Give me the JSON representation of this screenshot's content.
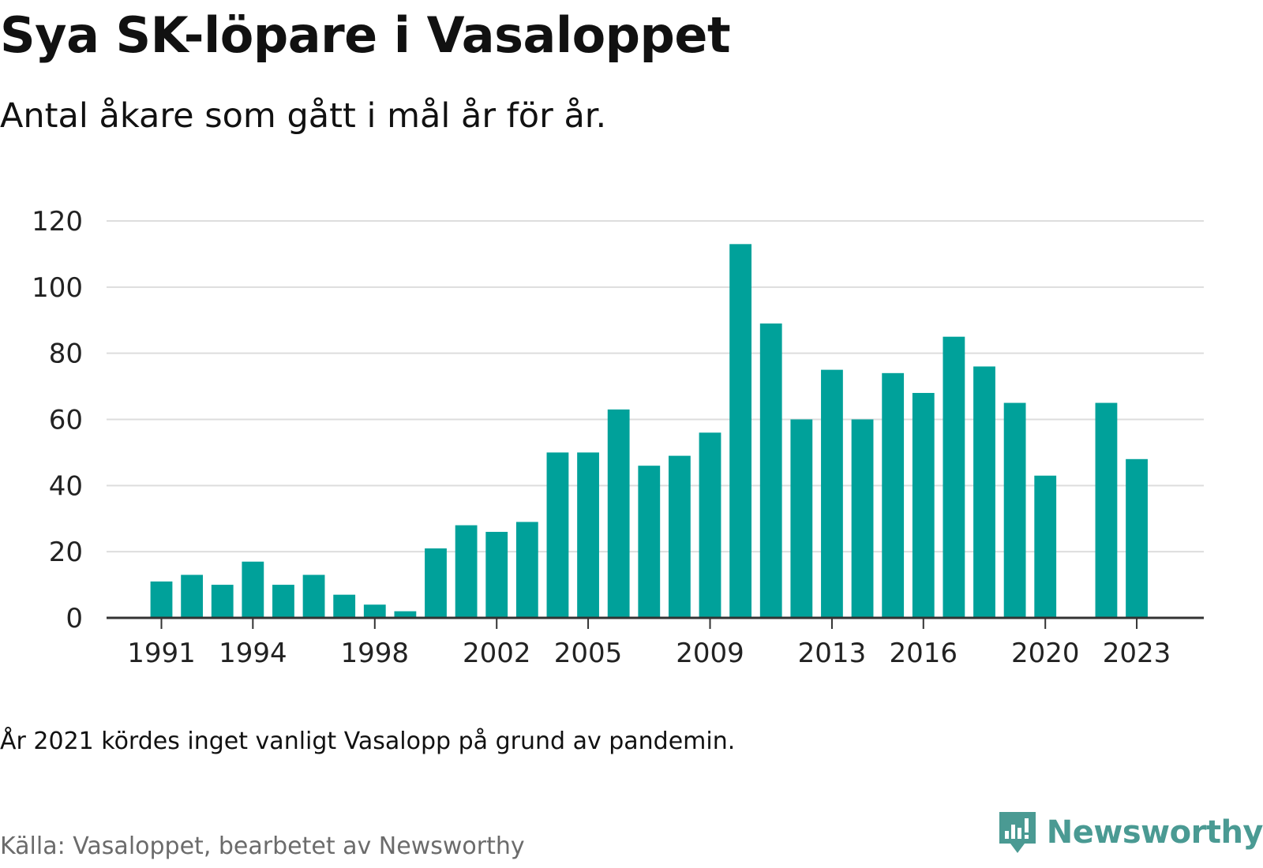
{
  "title": "Sya SK-löpare i Vasaloppet",
  "subtitle": "Antal åkare som gått i mål år för år.",
  "note": "År 2021 kördes inget vanligt Vasalopp på grund av pandemin.",
  "source": "Källa: Vasaloppet, bearbetet av Newsworthy",
  "brand": {
    "name": "Newsworthy",
    "icon": "newsworthy-logo-icon",
    "color": "#4a9a93"
  },
  "colors": {
    "bar": "#00a19a",
    "grid": "#dddddd",
    "axis": "#333333"
  },
  "chart_data": {
    "type": "bar",
    "title": "Sya SK-löpare i Vasaloppet",
    "subtitle": "Antal åkare som gått i mål år för år.",
    "xlabel": "",
    "ylabel": "",
    "ylim": [
      0,
      120
    ],
    "yticks": [
      0,
      20,
      40,
      60,
      80,
      100,
      120
    ],
    "xlim": [
      1989.2,
      2025.2
    ],
    "xticks": [
      1991,
      1994,
      1998,
      2002,
      2005,
      2009,
      2013,
      2016,
      2020,
      2023
    ],
    "grid": true,
    "legend": "none",
    "x": [
      1991,
      1992,
      1993,
      1994,
      1995,
      1996,
      1997,
      1998,
      1999,
      2000,
      2001,
      2002,
      2003,
      2004,
      2005,
      2006,
      2007,
      2008,
      2009,
      2010,
      2011,
      2012,
      2013,
      2014,
      2015,
      2016,
      2017,
      2018,
      2019,
      2020,
      2022,
      2023
    ],
    "values": [
      11,
      13,
      10,
      17,
      10,
      13,
      7,
      4,
      2,
      21,
      28,
      26,
      29,
      50,
      50,
      63,
      46,
      49,
      56,
      113,
      89,
      60,
      75,
      60,
      74,
      68,
      85,
      76,
      65,
      43,
      65,
      48
    ]
  }
}
